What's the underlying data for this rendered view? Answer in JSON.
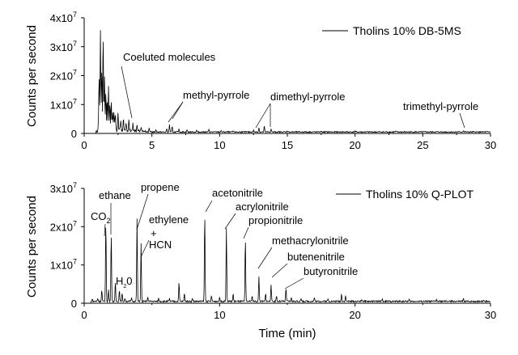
{
  "chart_data": [
    {
      "type": "line",
      "legend": "Tholins 10%  DB-5MS",
      "ylabel": "Counts per second",
      "xlabel": "",
      "xlim": [
        0,
        30
      ],
      "ylim": [
        0,
        40000000
      ],
      "xticks": [
        "0",
        "5",
        "10",
        "15",
        "20",
        "25",
        "30"
      ],
      "yticks": [
        {
          "base": "0",
          "exp": ""
        },
        {
          "base": "1x10",
          "exp": "7"
        },
        {
          "base": "2x10",
          "exp": "7"
        },
        {
          "base": "3x10",
          "exp": "7"
        },
        {
          "base": "4x10",
          "exp": "7"
        }
      ],
      "annotations": [
        {
          "text": "Coeluted molecules",
          "x": 2.5
        },
        {
          "text": "methyl-pyrrole",
          "x": 6.3
        },
        {
          "text": "dimethyl-pyrrole",
          "x": 13.5
        },
        {
          "text": "trimethyl-pyrrole",
          "x": 28.0
        }
      ],
      "peaks": [
        [
          0.9,
          1.0
        ],
        [
          1.1,
          19.0
        ],
        [
          1.2,
          35.0
        ],
        [
          1.3,
          22.0
        ],
        [
          1.4,
          32.0
        ],
        [
          1.5,
          18.0
        ],
        [
          1.6,
          14.0
        ],
        [
          1.7,
          11.0
        ],
        [
          1.8,
          15.0
        ],
        [
          1.9,
          8.0
        ],
        [
          2.0,
          10.0
        ],
        [
          2.1,
          6.0
        ],
        [
          2.2,
          7.0
        ],
        [
          2.3,
          5.0
        ],
        [
          2.5,
          6.0
        ],
        [
          2.7,
          4.0
        ],
        [
          2.9,
          4.5
        ],
        [
          3.1,
          3.0
        ],
        [
          3.3,
          3.5
        ],
        [
          3.6,
          2.5
        ],
        [
          3.9,
          2.0
        ],
        [
          4.2,
          1.5
        ],
        [
          4.8,
          1.5
        ],
        [
          5.3,
          0.8
        ],
        [
          6.1,
          1.2
        ],
        [
          6.3,
          2.5
        ],
        [
          6.5,
          1.8
        ],
        [
          7.0,
          1.0
        ],
        [
          7.6,
          0.8
        ],
        [
          8.3,
          0.6
        ],
        [
          9.2,
          0.8
        ],
        [
          10.1,
          0.5
        ],
        [
          11.0,
          0.4
        ],
        [
          12.5,
          0.6
        ],
        [
          12.9,
          1.5
        ],
        [
          13.3,
          2.0
        ],
        [
          13.8,
          1.0
        ],
        [
          15.0,
          0.4
        ],
        [
          17.5,
          0.3
        ],
        [
          20.0,
          0.3
        ],
        [
          23.0,
          0.2
        ],
        [
          28.0,
          0.5
        ]
      ]
    },
    {
      "type": "line",
      "legend": "Tholins 10%  Q-PLOT",
      "ylabel": "Counts per second",
      "xlabel": "Time (min)",
      "xlim": [
        0,
        30
      ],
      "ylim": [
        0,
        30000000
      ],
      "xticks": [
        "0",
        "10",
        "20",
        "30"
      ],
      "yticks": [
        {
          "base": "0",
          "exp": ""
        },
        {
          "base": "1x10",
          "exp": "7"
        },
        {
          "base": "2x10",
          "exp": "7"
        },
        {
          "base": "3x10",
          "exp": "7"
        }
      ],
      "annotations": [
        {
          "text": "CO",
          "sub": "2",
          "x": 1.6
        },
        {
          "text": "ethane",
          "x": 2.0
        },
        {
          "text": "H",
          "sub": "2",
          "tail": "0",
          "x": 2.7
        },
        {
          "text": "propene",
          "x": 3.9
        },
        {
          "text": "ethylene",
          "x": 4.3
        },
        {
          "text": "+",
          "x": 4.3
        },
        {
          "text": "HCN",
          "x": 4.3
        },
        {
          "text": "acetonitrile",
          "x": 8.9
        },
        {
          "text": "acrylonitrile",
          "x": 10.5
        },
        {
          "text": "propionitrile",
          "x": 11.9
        },
        {
          "text": "methacrylonitrile",
          "x": 12.9
        },
        {
          "text": "butenenitrile",
          "x": 13.8
        },
        {
          "text": "butyronitrile",
          "x": 14.9
        }
      ],
      "peaks": [
        [
          0.6,
          0.6
        ],
        [
          1.0,
          0.8
        ],
        [
          1.3,
          3.0
        ],
        [
          1.6,
          21.0
        ],
        [
          1.8,
          3.0
        ],
        [
          2.0,
          18.0
        ],
        [
          2.3,
          5.0
        ],
        [
          2.6,
          3.0
        ],
        [
          2.8,
          2.0
        ],
        [
          3.0,
          0.8
        ],
        [
          3.5,
          1.0
        ],
        [
          3.9,
          21.5
        ],
        [
          4.2,
          15.0
        ],
        [
          4.7,
          1.2
        ],
        [
          5.5,
          0.8
        ],
        [
          6.3,
          0.6
        ],
        [
          7.0,
          5.0
        ],
        [
          7.4,
          2.0
        ],
        [
          8.0,
          0.8
        ],
        [
          8.9,
          23.0
        ],
        [
          9.4,
          1.5
        ],
        [
          10.0,
          1.0
        ],
        [
          10.5,
          19.0
        ],
        [
          11.0,
          2.0
        ],
        [
          11.9,
          16.5
        ],
        [
          12.4,
          1.5
        ],
        [
          12.9,
          6.5
        ],
        [
          13.4,
          2.0
        ],
        [
          13.8,
          4.5
        ],
        [
          14.2,
          1.5
        ],
        [
          14.9,
          3.5
        ],
        [
          15.3,
          1.0
        ],
        [
          16.0,
          0.8
        ],
        [
          17.0,
          1.0
        ],
        [
          18.0,
          0.6
        ],
        [
          19.0,
          2.0
        ],
        [
          19.3,
          1.5
        ],
        [
          20.5,
          0.5
        ],
        [
          22.0,
          0.6
        ],
        [
          24.0,
          0.4
        ],
        [
          26.0,
          0.5
        ],
        [
          28.0,
          0.6
        ],
        [
          29.5,
          0.4
        ]
      ]
    }
  ]
}
